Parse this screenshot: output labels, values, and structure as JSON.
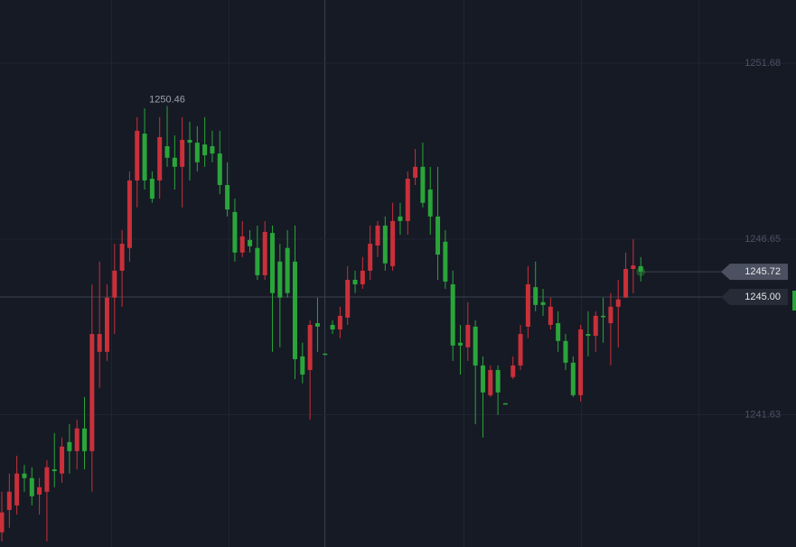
{
  "chart_data": {
    "type": "candlestick",
    "open": [
      1238.27,
      1238.91,
      1239.04,
      1239.95,
      1239.82,
      1239.35,
      1239.43,
      1240.07,
      1239.95,
      1240.85,
      1240.59,
      1241.24,
      1240.59,
      1243.43,
      1243.43,
      1244.98,
      1245.75,
      1246.4,
      1248.33,
      1249.67,
      1248.38,
      1248.33,
      1249.31,
      1248.98,
      1248.72,
      1249.49,
      1249.41,
      1249.36,
      1249.31,
      1249.1,
      1248.2,
      1247.43,
      1246.27,
      1246.63,
      1246.4,
      1245.62,
      1246.83,
      1246.01,
      1246.4,
      1246.01,
      1243.3,
      1242.91,
      1244.25,
      1243.38,
      1244.2,
      1244.07,
      1244.41,
      1245.49,
      1245.36,
      1245.75,
      1246.47,
      1247.04,
      1245.88,
      1247.3,
      1247.17,
      1248.41,
      1248.72,
      1248.07,
      1247.3,
      1246.58,
      1245.36,
      1243.69,
      1243.56,
      1244.15,
      1243.04,
      1242.19,
      1242.91,
      1241.96,
      1242.71,
      1243.04,
      1244.15,
      1245.28,
      1244.85,
      1244.2,
      1244.25,
      1243.74,
      1243.12,
      1242.19,
      1243.94,
      1243.89,
      1244.46,
      1244.25,
      1244.72,
      1244.98,
      1245.8,
      1245.88
    ],
    "high": [
      1239.43,
      1239.95,
      1240.46,
      1240.2,
      1240.13,
      1239.82,
      1240.33,
      1241.11,
      1240.98,
      1241.36,
      1241.49,
      1242.14,
      1245.36,
      1246.01,
      1245.36,
      1246.52,
      1246.91,
      1248.59,
      1250.14,
      1250.39,
      1248.59,
      1250.14,
      1250.46,
      1249.62,
      1250.14,
      1250.01,
      1249.88,
      1250.14,
      1249.75,
      1249.75,
      1248.85,
      1247.81,
      1247.17,
      1246.91,
      1247.04,
      1247.17,
      1247.04,
      1246.52,
      1246.91,
      1247.04,
      1243.69,
      1244.33,
      1244.98,
      1243.38,
      1244.33,
      1244.72,
      1245.88,
      1245.75,
      1246.14,
      1247.04,
      1247.17,
      1247.3,
      1247.69,
      1247.69,
      1248.59,
      1249.23,
      1249.41,
      1248.72,
      1248.72,
      1246.91,
      1245.75,
      1244.2,
      1244.85,
      1244.33,
      1243.3,
      1243.04,
      1243.04,
      1241.96,
      1243.3,
      1244.2,
      1245.88,
      1246.01,
      1245.23,
      1244.98,
      1244.59,
      1243.94,
      1243.3,
      1244.2,
      1244.59,
      1244.59,
      1244.98,
      1245.11,
      1245.49,
      1246.27,
      1246.65,
      1246.14
    ],
    "low": [
      1238.01,
      1238.4,
      1238.78,
      1239.43,
      1239.04,
      1238.78,
      1238.01,
      1239.56,
      1239.69,
      1239.95,
      1240.07,
      1240.07,
      1239.43,
      1242.4,
      1243.17,
      1243.94,
      1244.72,
      1246.01,
      1247.56,
      1248.07,
      1247.69,
      1247.81,
      1248.72,
      1248.07,
      1247.56,
      1248.33,
      1248.59,
      1248.72,
      1248.85,
      1247.94,
      1247.3,
      1246.01,
      1246.14,
      1246.27,
      1245.49,
      1245.49,
      1243.43,
      1243.56,
      1244.98,
      1242.65,
      1242.53,
      1241.49,
      1243.43,
      1243.35,
      1243.94,
      1243.82,
      1244.2,
      1245.11,
      1245.23,
      1245.49,
      1246.14,
      1245.75,
      1245.75,
      1246.78,
      1246.78,
      1248.2,
      1247.56,
      1246.78,
      1245.49,
      1245.23,
      1243.17,
      1242.78,
      1243.17,
      1241.36,
      1240.98,
      1242.14,
      1241.63,
      1241.93,
      1242.65,
      1242.91,
      1243.82,
      1244.59,
      1244.46,
      1244.07,
      1243.43,
      1242.91,
      1242.14,
      1242.01,
      1243.3,
      1243.43,
      1243.69,
      1243.04,
      1243.56,
      1244.98,
      1245.11,
      1245.44
    ],
    "close": [
      1238.84,
      1239.43,
      1239.95,
      1239.82,
      1239.3,
      1239.56,
      1240.13,
      1240.02,
      1240.72,
      1240.59,
      1241.24,
      1240.59,
      1243.94,
      1243.94,
      1244.98,
      1245.75,
      1246.52,
      1248.33,
      1249.75,
      1248.33,
      1247.81,
      1249.57,
      1248.98,
      1248.72,
      1249.49,
      1249.41,
      1248.85,
      1249.05,
      1249.1,
      1248.2,
      1247.5,
      1246.27,
      1246.73,
      1246.45,
      1245.62,
      1246.86,
      1245.11,
      1244.98,
      1245.11,
      1243.22,
      1242.78,
      1244.2,
      1244.15,
      1243.35,
      1244.07,
      1244.46,
      1245.49,
      1245.36,
      1245.75,
      1246.52,
      1247.04,
      1245.96,
      1247.17,
      1247.17,
      1248.38,
      1248.72,
      1247.69,
      1247.3,
      1246.21,
      1245.44,
      1243.61,
      1243.61,
      1244.2,
      1243.04,
      1242.27,
      1242.91,
      1242.27,
      1241.93,
      1243.04,
      1243.94,
      1245.36,
      1244.77,
      1244.77,
      1244.72,
      1243.74,
      1243.12,
      1242.19,
      1244.07,
      1243.89,
      1244.46,
      1244.44,
      1244.72,
      1244.93,
      1245.8,
      1245.9,
      1245.72
    ],
    "up_color": "#c9303a",
    "down_color": "#2aa53a",
    "ylim": [
      1237.85,
      1253.49
    ],
    "yticks": [
      1251.68,
      1246.65,
      1241.63
    ],
    "grid": true,
    "crosshair_price": {
      "value": 1245,
      "label": "1245.00"
    }
  }
}
